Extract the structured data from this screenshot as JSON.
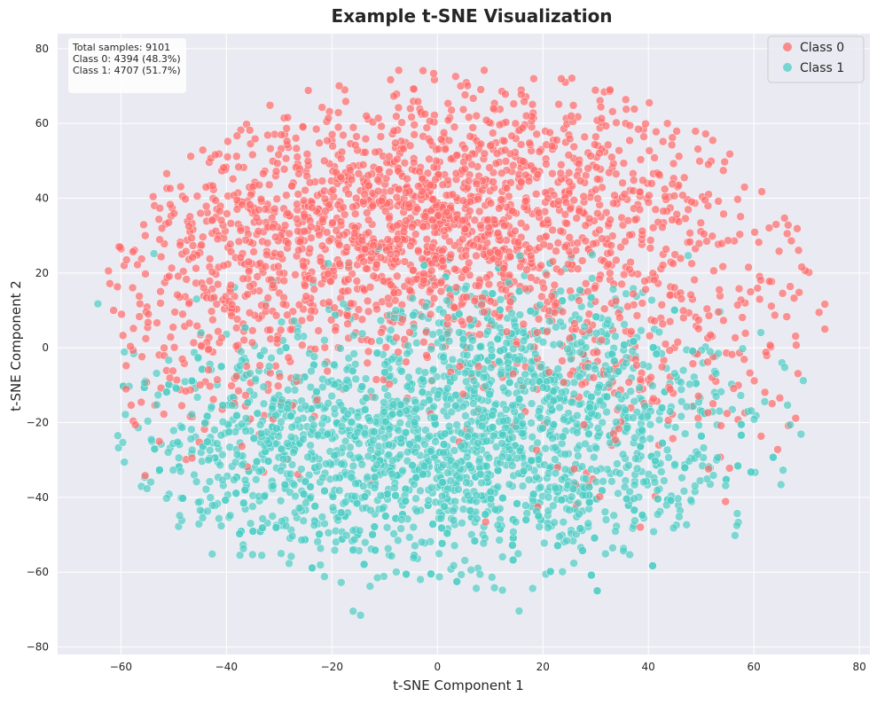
{
  "chart_data": {
    "type": "scatter",
    "title": "Example t-SNE Visualization",
    "xlabel": "t-SNE Component 1",
    "ylabel": "t-SNE Component 2",
    "xlim": [
      -72,
      82
    ],
    "ylim": [
      -82,
      84
    ],
    "xticks": [
      -60,
      -40,
      -20,
      0,
      20,
      40,
      60,
      80
    ],
    "yticks": [
      -80,
      -60,
      -40,
      -20,
      0,
      20,
      40,
      60,
      80
    ],
    "grid": true,
    "legend_position": "top-right",
    "stats_box": {
      "position": "top-left",
      "lines": [
        "Total samples: 9101",
        "Class 0: 4394 (48.3%)",
        "Class 1: 4707 (51.7%)"
      ]
    },
    "domain_extent": {
      "x": [
        -66,
        75
      ],
      "y": [
        -75,
        76
      ]
    },
    "series": [
      {
        "name": "Class 0",
        "color": "#ff6b6b",
        "count": 4394,
        "clusters": [
          {
            "center": [
              -10,
              32
            ],
            "spread": [
              21,
              17
            ],
            "weight": 0.55
          },
          {
            "center": [
              25,
              42
            ],
            "spread": [
              18,
              16
            ],
            "weight": 0.2
          },
          {
            "center": [
              40,
              5
            ],
            "spread": [
              18,
              20
            ],
            "weight": 0.15
          },
          {
            "center": [
              -45,
              10
            ],
            "spread": [
              12,
              22
            ],
            "weight": 0.1
          }
        ]
      },
      {
        "name": "Class 1",
        "color": "#4ecdc4",
        "count": 4707,
        "clusters": [
          {
            "center": [
              0,
              -28
            ],
            "spread": [
              21,
              16
            ],
            "weight": 0.55
          },
          {
            "center": [
              15,
              0
            ],
            "spread": [
              13,
              12
            ],
            "weight": 0.15
          },
          {
            "center": [
              35,
              -25
            ],
            "spread": [
              16,
              14
            ],
            "weight": 0.15
          },
          {
            "center": [
              -35,
              -25
            ],
            "spread": [
              14,
              16
            ],
            "weight": 0.15
          }
        ]
      }
    ]
  }
}
